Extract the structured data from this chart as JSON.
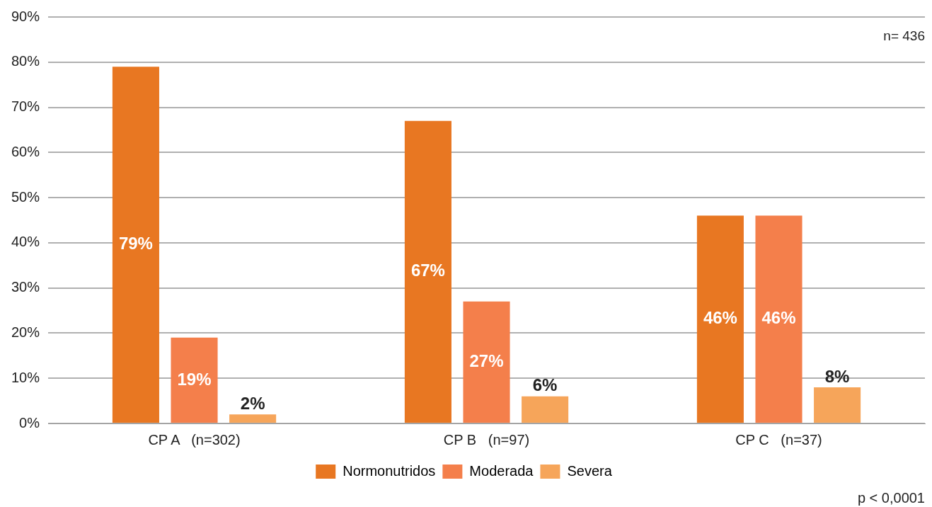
{
  "chart_data": {
    "type": "bar",
    "categories": [
      "CP A   (n=302)",
      "CP B   (n=97)",
      "CP C   (n=37)"
    ],
    "series": [
      {
        "name": "Normonutridos",
        "color": "#e87722",
        "values": [
          79,
          67,
          46
        ]
      },
      {
        "name": "Moderada",
        "color": "#f47f4b",
        "values": [
          19,
          27,
          46
        ]
      },
      {
        "name": "Severa",
        "color": "#f6a55a",
        "values": [
          2,
          6,
          8
        ]
      }
    ],
    "ylim": [
      0,
      90
    ],
    "yticks": [
      {
        "value": 0,
        "label": "0%"
      },
      {
        "value": 10,
        "label": "10%"
      },
      {
        "value": 20,
        "label": "20%"
      },
      {
        "value": 30,
        "label": "30%"
      },
      {
        "value": 40,
        "label": "40%"
      },
      {
        "value": 50,
        "label": "50%"
      },
      {
        "value": 60,
        "label": "60%"
      },
      {
        "value": 70,
        "label": "70%"
      },
      {
        "value": 80,
        "label": "80%"
      },
      {
        "value": 90,
        "label": "90%"
      }
    ],
    "value_labels": [
      [
        "79%",
        "67%",
        "46%"
      ],
      [
        "19%",
        "27%",
        "46%"
      ],
      [
        "2%",
        "6%",
        "8%"
      ]
    ],
    "annotations": [
      "n= 436",
      "p < 0,0001"
    ],
    "grid": "y",
    "legend": "bottom"
  }
}
